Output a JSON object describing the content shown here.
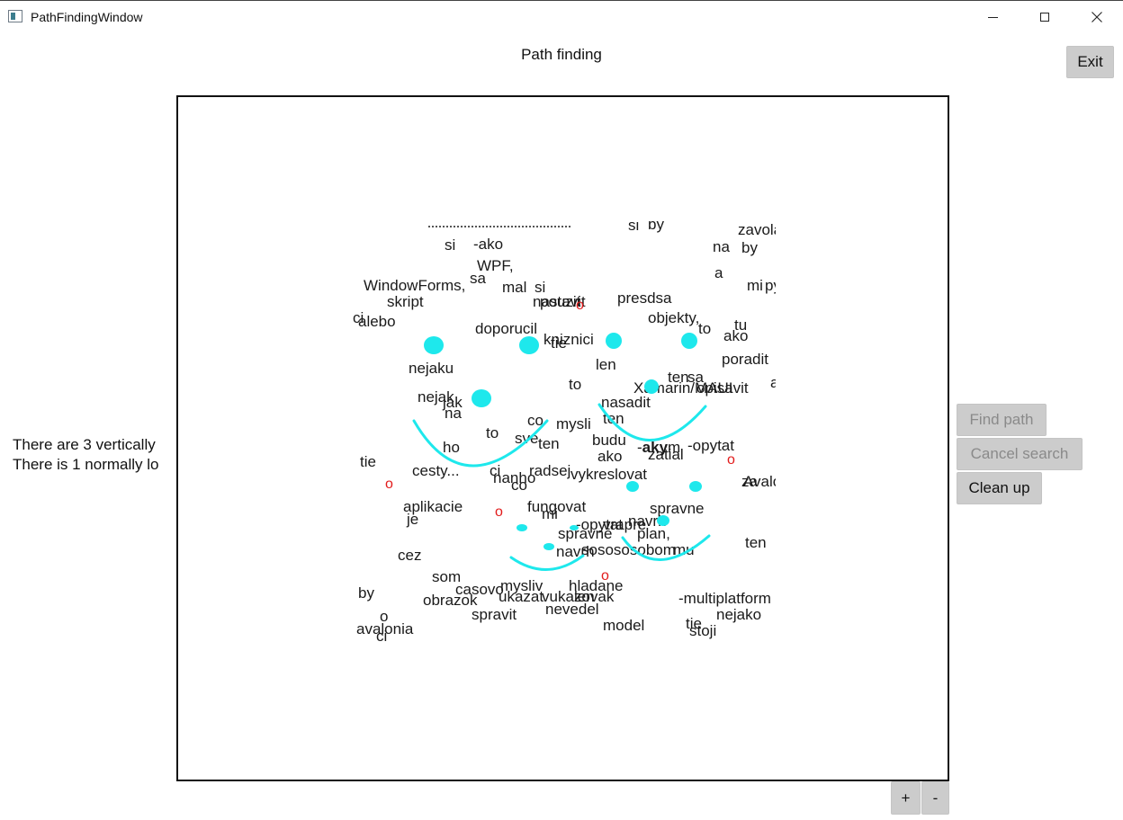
{
  "window": {
    "title": "PathFindingWindow"
  },
  "header": {
    "title": "Path finding"
  },
  "buttons": {
    "exit": "Exit",
    "find_path": "Find path",
    "cancel_search": "Cancel search",
    "clean_up": "Clean up",
    "zoom_in": "+",
    "zoom_out": "-"
  },
  "status": {
    "line1": "There are 3 vertically",
    "line2": "There is 1 normally lo"
  },
  "colors": {
    "node": "#1ee8ec",
    "marker": "#e21b1b",
    "button": "#cccccc",
    "disabled_text": "#8a8a8a"
  },
  "marker_glyph": "o",
  "words": [
    "si",
    "by",
    "zavola",
    "si",
    "-ako",
    "na",
    "by",
    "WPF,",
    "sa",
    "a",
    "WindowForms,",
    "mal",
    "si",
    "nastavit",
    "presdsa",
    "mi",
    "py",
    "skript",
    "pouzit",
    "objekty,",
    "alebo",
    "doporucil",
    "to",
    "tu",
    "ci",
    "kniznici",
    "ako",
    "tie",
    "nejaku",
    "len",
    "poradit",
    "ten",
    "sa",
    "a",
    "to",
    "Xamarin/MAUI",
    "opisavit",
    "nejak",
    "nasadit",
    "jak",
    "na",
    "ten",
    "co",
    "mysli",
    "to",
    "budu",
    "-opytat",
    "sve",
    "ten",
    "ho",
    "ako",
    "zatial",
    "tie",
    "cesty...",
    "ci",
    "radsej",
    "vykreslovat",
    "za",
    "nanho",
    "Avalo",
    "co",
    "aplikacie",
    "fungovat",
    "spravne",
    "mi",
    "je",
    "-opytat",
    "vrapre",
    "navrh",
    "spravne",
    "plan,",
    "cez",
    "navrh",
    "sosososobom",
    "mu",
    "ten",
    "som",
    "mysliv",
    "hladane",
    "casovo",
    "ukazat",
    "vukazovak",
    "by",
    "len",
    "-multiplatform",
    "obrazok",
    "nevedel",
    "nejako",
    "o",
    "spravit",
    "model",
    "tie",
    "stoji",
    "avalonia",
    "ci"
  ],
  "emphasis_word": {
    "prefix": "-",
    "bold": "aky",
    "suffix": "m"
  }
}
